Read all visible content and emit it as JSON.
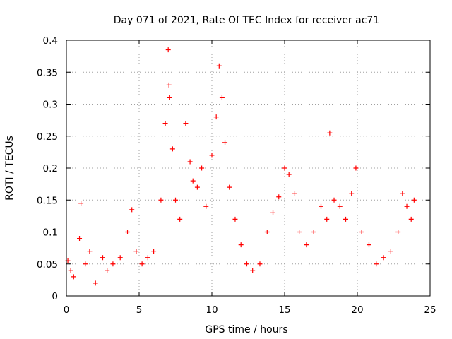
{
  "chart_data": {
    "type": "scatter",
    "title": "Day 071 of 2021, Rate Of TEC Index for receiver ac71",
    "xlabel": "GPS time / hours",
    "ylabel": "ROTI / TECUs",
    "xlim": [
      0,
      25
    ],
    "ylim": [
      0,
      0.4
    ],
    "xticks": [
      "0",
      "5",
      "10",
      "15",
      "20",
      "25"
    ],
    "yticks": [
      "0",
      "0.05",
      "0.1",
      "0.15",
      "0.2",
      "0.25",
      "0.3",
      "0.35",
      "0.4"
    ],
    "grid": true,
    "marker": "+",
    "color": "#ff0000",
    "series": [
      {
        "x": [
          0.1,
          0.3,
          0.5,
          0.9,
          1.0,
          1.3,
          1.6,
          2.0,
          2.5,
          2.8,
          3.2,
          3.7,
          4.2,
          4.5,
          4.8,
          5.2,
          5.6,
          6.0,
          6.5,
          6.8,
          7.0,
          7.05,
          7.1,
          7.3,
          7.5,
          7.8,
          8.2,
          8.5,
          8.7,
          9.0,
          9.3,
          9.6,
          10.0,
          10.3,
          10.5,
          10.7,
          10.9,
          11.2,
          11.6,
          12.0,
          12.4,
          12.8,
          13.3,
          13.8,
          14.2,
          14.6,
          15.0,
          15.3,
          15.7,
          16.0,
          16.5,
          17.0,
          17.5,
          17.9,
          18.1,
          18.4,
          18.8,
          19.2,
          19.6,
          19.9,
          20.3,
          20.8,
          21.3,
          21.8,
          22.3,
          22.8,
          23.1,
          23.4,
          23.7,
          23.9
        ],
        "y": [
          0.055,
          0.04,
          0.03,
          0.09,
          0.145,
          0.05,
          0.07,
          0.02,
          0.06,
          0.04,
          0.05,
          0.06,
          0.1,
          0.135,
          0.07,
          0.05,
          0.06,
          0.07,
          0.15,
          0.27,
          0.385,
          0.33,
          0.31,
          0.23,
          0.15,
          0.12,
          0.27,
          0.21,
          0.18,
          0.17,
          0.2,
          0.14,
          0.22,
          0.28,
          0.36,
          0.31,
          0.24,
          0.17,
          0.12,
          0.08,
          0.05,
          0.04,
          0.05,
          0.1,
          0.13,
          0.155,
          0.2,
          0.19,
          0.16,
          0.1,
          0.08,
          0.1,
          0.14,
          0.12,
          0.255,
          0.15,
          0.14,
          0.12,
          0.16,
          0.2,
          0.1,
          0.08,
          0.05,
          0.06,
          0.07,
          0.1,
          0.16,
          0.14,
          0.12,
          0.15
        ]
      }
    ]
  }
}
